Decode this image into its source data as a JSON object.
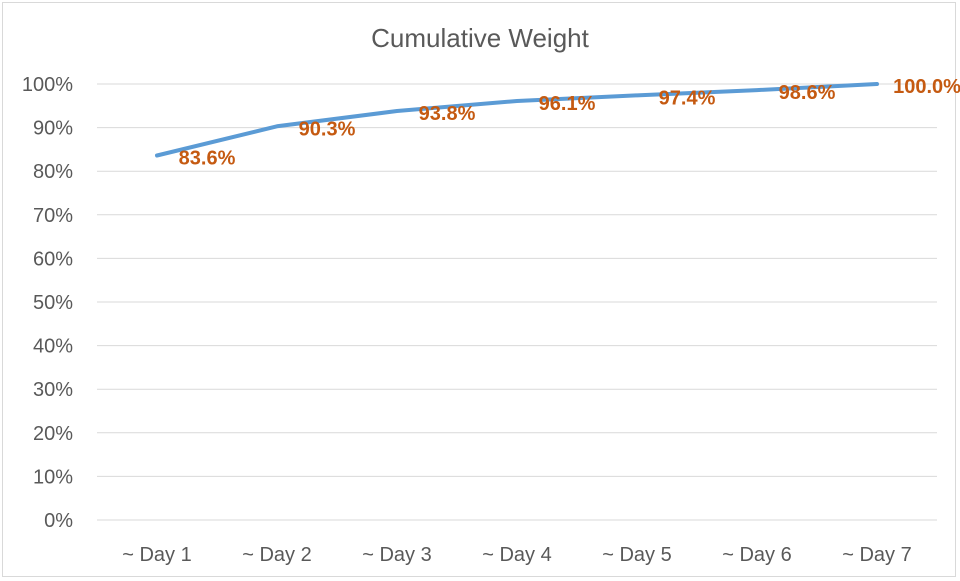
{
  "chart_data": {
    "type": "line",
    "title": "Cumulative Weight",
    "categories": [
      "~ Day 1",
      "~ Day 2",
      "~ Day 3",
      "~ Day 4",
      "~ Day 5",
      "~ Day 6",
      "~ Day 7"
    ],
    "values": [
      83.6,
      90.3,
      93.8,
      96.1,
      97.4,
      98.6,
      100.0
    ],
    "data_labels": [
      "83.6%",
      "90.3%",
      "93.8%",
      "96.1%",
      "97.4%",
      "98.6%",
      "100.0%"
    ],
    "y_ticks": [
      "0%",
      "10%",
      "20%",
      "30%",
      "40%",
      "50%",
      "60%",
      "70%",
      "80%",
      "90%",
      "100%"
    ],
    "ylim": [
      0,
      100
    ],
    "grid": true,
    "legend": "none",
    "line_color": "#5b9bd5",
    "label_color": "#c55a11"
  }
}
